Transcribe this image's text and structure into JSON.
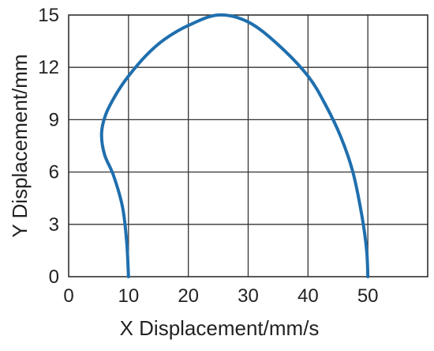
{
  "chart_data": {
    "type": "line",
    "title": "",
    "xlabel": "X Displacement/mm/s",
    "ylabel": "Y Displacement/mm",
    "xlim": [
      0,
      60
    ],
    "ylim": [
      0,
      15
    ],
    "x_ticks": [
      "0",
      "10",
      "20",
      "30",
      "40",
      "50"
    ],
    "y_ticks": [
      "0",
      "3",
      "6",
      "9",
      "12",
      "15"
    ],
    "grid": true,
    "legend": "none",
    "series": [
      {
        "color": "#1f6fae",
        "points": [
          [
            10,
            0
          ],
          [
            9.7,
            2
          ],
          [
            9,
            4
          ],
          [
            7.5,
            5.8
          ],
          [
            6,
            7
          ],
          [
            5.5,
            8.2
          ],
          [
            6.2,
            9.3
          ],
          [
            8,
            10.5
          ],
          [
            10,
            11.5
          ],
          [
            13,
            12.7
          ],
          [
            16,
            13.6
          ],
          [
            20,
            14.4
          ],
          [
            25,
            15
          ],
          [
            30,
            14.6
          ],
          [
            35,
            13.3
          ],
          [
            40,
            11.5
          ],
          [
            43,
            9.8
          ],
          [
            45.5,
            8
          ],
          [
            47.5,
            6
          ],
          [
            49,
            3.5
          ],
          [
            49.8,
            1.5
          ],
          [
            50,
            0
          ]
        ]
      }
    ]
  }
}
